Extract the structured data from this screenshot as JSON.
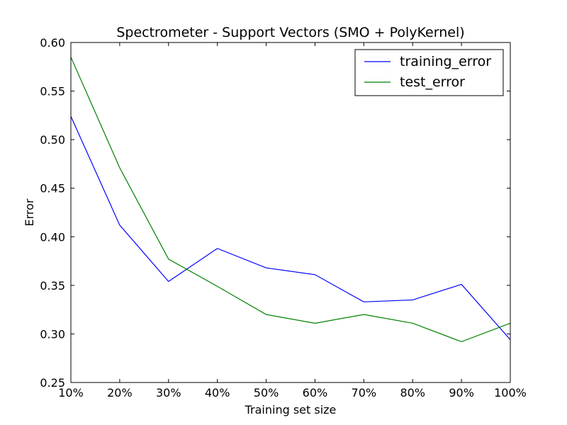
{
  "chart_data": {
    "type": "line",
    "title": "Spectrometer - Support Vectors (SMO + PolyKernel)",
    "xlabel": "Training set size",
    "ylabel": "Error",
    "categories": [
      "10%",
      "20%",
      "30%",
      "40%",
      "50%",
      "60%",
      "70%",
      "80%",
      "90%",
      "100%"
    ],
    "yticks": [
      "0.25",
      "0.30",
      "0.35",
      "0.40",
      "0.45",
      "0.50",
      "0.55",
      "0.60"
    ],
    "ylim": [
      0.25,
      0.6
    ],
    "grid": false,
    "legend_position": "top-right",
    "series": [
      {
        "name": "training_error",
        "color": "#0000ff",
        "values": [
          0.524,
          0.412,
          0.354,
          0.388,
          0.368,
          0.361,
          0.333,
          0.335,
          0.351,
          0.294
        ]
      },
      {
        "name": "test_error",
        "color": "#008000",
        "values": [
          0.585,
          0.471,
          0.377,
          0.349,
          0.32,
          0.311,
          0.32,
          0.311,
          0.292,
          0.311
        ]
      }
    ]
  }
}
